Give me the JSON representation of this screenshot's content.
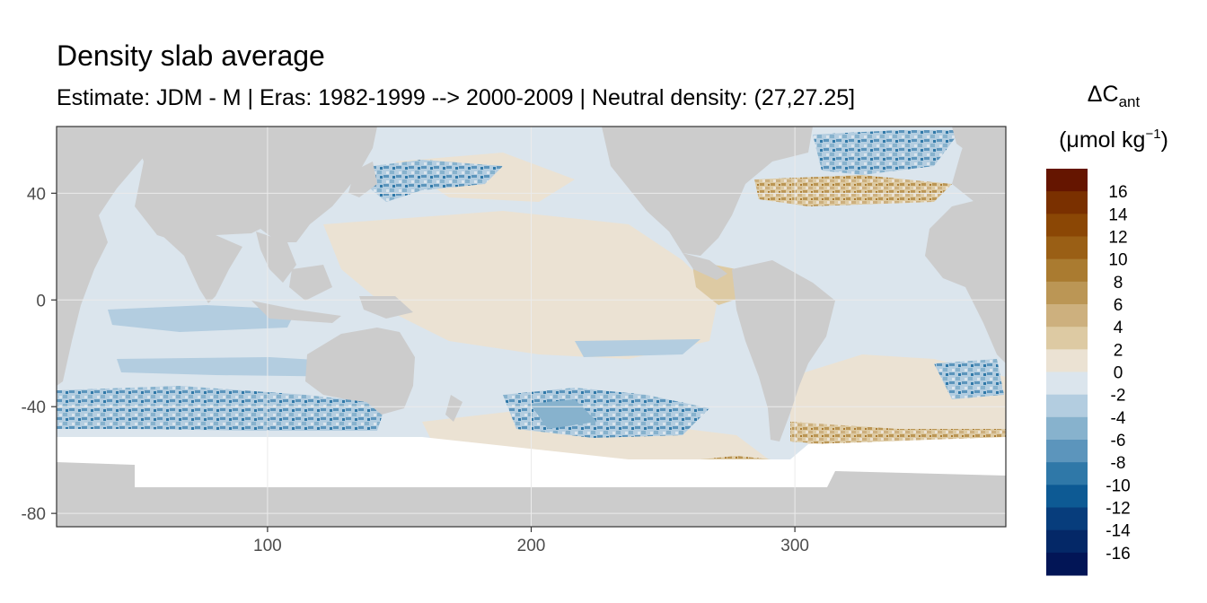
{
  "chart_data": {
    "type": "heatmap",
    "title": "Density slab average",
    "subtitle": "Estimate: JDM - M | Eras: 1982-1999 --> 2000-2009 | Neutral density: (27,27.25]",
    "xlabel": "",
    "ylabel": "",
    "x_ticks": [
      "100",
      "200",
      "300"
    ],
    "y_ticks": [
      "40",
      "0",
      "-40",
      "-80"
    ],
    "xlim": [
      20,
      380
    ],
    "ylim": [
      -85,
      65
    ],
    "grid": true,
    "legend": {
      "title_main": "ΔC",
      "title_sub": "ant",
      "unit_open": "(μmol kg",
      "unit_sup": "−1",
      "unit_close": ")",
      "placement": "right",
      "labels": [
        "16",
        "14",
        "12",
        "10",
        "8",
        "6",
        "4",
        "2",
        "0",
        "-2",
        "-4",
        "-6",
        "-8",
        "-10",
        "-12",
        "-14",
        "-16"
      ],
      "colors": [
        "#651500",
        "#7a3000",
        "#8b4705",
        "#9a5f15",
        "#aa7b30",
        "#bb9655",
        "#cdb07e",
        "#ddcaa3",
        "#ebe2d3",
        "#dbe5ed",
        "#b3cde0",
        "#87b2cd",
        "#5c95bc",
        "#2f78a8",
        "#0d5a94",
        "#073d7c",
        "#042867",
        "#021556"
      ]
    },
    "colors": {
      "land": "#cccccc",
      "ice_nodata": "#ffffff",
      "panel_border": "#333333",
      "grid": "#ebebeb"
    }
  }
}
